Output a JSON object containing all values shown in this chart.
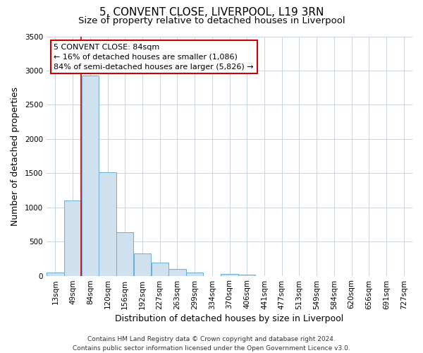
{
  "title": "5, CONVENT CLOSE, LIVERPOOL, L19 3RN",
  "subtitle": "Size of property relative to detached houses in Liverpool",
  "xlabel": "Distribution of detached houses by size in Liverpool",
  "ylabel": "Number of detached properties",
  "bin_labels": [
    "13sqm",
    "49sqm",
    "84sqm",
    "120sqm",
    "156sqm",
    "192sqm",
    "227sqm",
    "263sqm",
    "299sqm",
    "334sqm",
    "370sqm",
    "406sqm",
    "441sqm",
    "477sqm",
    "513sqm",
    "549sqm",
    "584sqm",
    "620sqm",
    "656sqm",
    "691sqm",
    "727sqm"
  ],
  "bar_values": [
    50,
    1100,
    2930,
    1510,
    640,
    330,
    195,
    100,
    50,
    0,
    30,
    15,
    0,
    0,
    0,
    0,
    0,
    0,
    0,
    0,
    0
  ],
  "bar_color": "#cfe0ef",
  "bar_edge_color": "#6aaed6",
  "vline_color": "#cc0000",
  "annotation_line1": "5 CONVENT CLOSE: 84sqm",
  "annotation_line2": "← 16% of detached houses are smaller (1,086)",
  "annotation_line3": "84% of semi-detached houses are larger (5,826) →",
  "annotation_box_edge_color": "#cc0000",
  "annotation_box_facecolor": "#ffffff",
  "ylim": [
    0,
    3500
  ],
  "yticks": [
    0,
    500,
    1000,
    1500,
    2000,
    2500,
    3000,
    3500
  ],
  "footer_line1": "Contains HM Land Registry data © Crown copyright and database right 2024.",
  "footer_line2": "Contains public sector information licensed under the Open Government Licence v3.0.",
  "background_color": "#ffffff",
  "plot_background_color": "#ffffff",
  "grid_color": "#c8d4e0",
  "title_fontsize": 11,
  "subtitle_fontsize": 9.5,
  "axis_label_fontsize": 9,
  "tick_fontsize": 7.5,
  "annotation_fontsize": 8,
  "footer_fontsize": 6.5
}
